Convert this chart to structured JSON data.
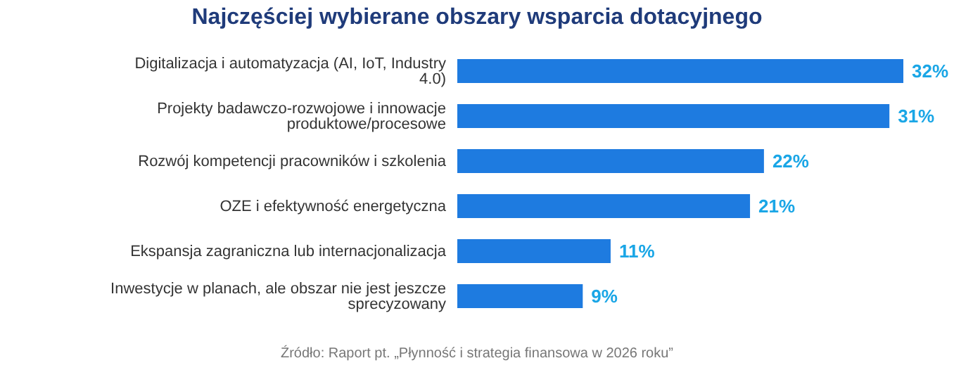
{
  "chart_data": {
    "type": "bar",
    "orientation": "horizontal",
    "title": "Najczęściej wybierane obszary wsparcia dotacyjnego",
    "categories": [
      "Digitalizacja i automatyzacja (AI, IoT, Industry 4.0)",
      "Projekty badawczo-rozwojowe i innowacje produktowe/procesowe",
      "Rozwój kompetencji pracowników i szkolenia",
      "OZE i efektywność energetyczna",
      "Ekspansja zagraniczna lub internacjonalizacja",
      "Inwestycje w planach, ale obszar nie jest jeszcze sprecyzowany"
    ],
    "values": [
      32,
      31,
      22,
      21,
      11,
      9
    ],
    "value_labels": [
      "32%",
      "31%",
      "22%",
      "21%",
      "11%",
      "9%"
    ],
    "color": "#1e7be0",
    "annotations": [
      "Źródło: Raport pt. „Płynność i strategia finansowa w 2026 roku”"
    ]
  }
}
